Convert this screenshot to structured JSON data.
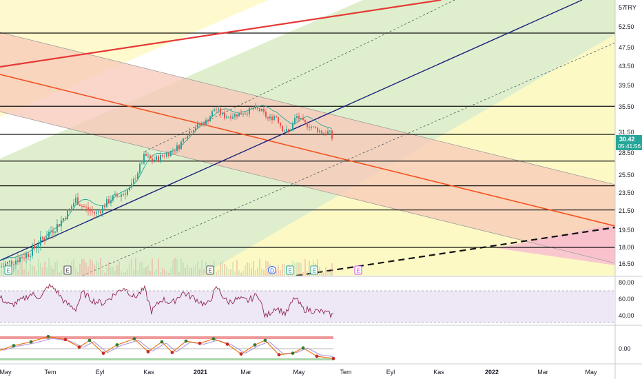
{
  "currency_label": "TRY",
  "price_tag": {
    "value": "30.42",
    "countdown": "05:41:56",
    "color": "#26a69a"
  },
  "price_axis": {
    "ticks": [
      "52.50",
      "47.50",
      "43.50",
      "39.50",
      "35.50",
      "31.50",
      "28.50",
      "25.50",
      "23.50",
      "21.50",
      "19.50",
      "18.00",
      "16.50"
    ],
    "partial_top": "57"
  },
  "rsi_axis": {
    "ticks": [
      "80.00",
      "60.00",
      "40.00"
    ]
  },
  "osc_axis": {
    "ticks": [
      "0.00"
    ]
  },
  "time_axis": {
    "labels": [
      {
        "text": "May",
        "bold": false
      },
      {
        "text": "Tem",
        "bold": false
      },
      {
        "text": "Eyl",
        "bold": false
      },
      {
        "text": "Kas",
        "bold": false
      },
      {
        "text": "2021",
        "bold": true
      },
      {
        "text": "Mar",
        "bold": false
      },
      {
        "text": "May",
        "bold": false
      },
      {
        "text": "Tem",
        "bold": false
      },
      {
        "text": "Eyl",
        "bold": false
      },
      {
        "text": "Kas",
        "bold": false
      },
      {
        "text": "2022",
        "bold": true
      },
      {
        "text": "Mar",
        "bold": false
      },
      {
        "text": "May",
        "bold": false
      }
    ]
  },
  "event_markers": [
    {
      "letter": "E",
      "color": "#26a69a"
    },
    {
      "letter": "E",
      "color": "#555555"
    },
    {
      "letter": "E",
      "color": "#555555"
    },
    {
      "letter": "D",
      "color": "#2962ff"
    },
    {
      "letter": "E",
      "color": "#26a69a"
    },
    {
      "letter": "E",
      "color": "#26a69a"
    },
    {
      "letter": "E",
      "color": "#e040fb"
    }
  ],
  "chart_data": {
    "type": "line",
    "price_range": [
      15.5,
      57
    ],
    "horizontal_levels": [
      51.0,
      35.6,
      31.2,
      27.4,
      24.3,
      21.6,
      18.0
    ],
    "close_series": [
      {
        "t": 0,
        "v": 16.2
      },
      {
        "t": 20,
        "v": 16.8
      },
      {
        "t": 40,
        "v": 17.4
      },
      {
        "t": 55,
        "v": 18.3
      },
      {
        "t": 70,
        "v": 19.2
      },
      {
        "t": 85,
        "v": 20.1
      },
      {
        "t": 100,
        "v": 21.5
      },
      {
        "t": 110,
        "v": 22.8
      },
      {
        "t": 120,
        "v": 22.0
      },
      {
        "t": 130,
        "v": 21.5
      },
      {
        "t": 140,
        "v": 21.2
      },
      {
        "t": 150,
        "v": 22.0
      },
      {
        "t": 160,
        "v": 22.8
      },
      {
        "t": 175,
        "v": 23.3
      },
      {
        "t": 190,
        "v": 24.0
      },
      {
        "t": 200,
        "v": 26.0
      },
      {
        "t": 210,
        "v": 28.2
      },
      {
        "t": 220,
        "v": 27.5
      },
      {
        "t": 230,
        "v": 27.8
      },
      {
        "t": 245,
        "v": 28.5
      },
      {
        "t": 260,
        "v": 29.5
      },
      {
        "t": 270,
        "v": 31.2
      },
      {
        "t": 285,
        "v": 32.5
      },
      {
        "t": 300,
        "v": 33.2
      },
      {
        "t": 312,
        "v": 35.3
      },
      {
        "t": 325,
        "v": 34.0
      },
      {
        "t": 340,
        "v": 34.2
      },
      {
        "t": 355,
        "v": 34.6
      },
      {
        "t": 370,
        "v": 35.3
      },
      {
        "t": 380,
        "v": 34.8
      },
      {
        "t": 390,
        "v": 33.5
      },
      {
        "t": 400,
        "v": 34.2
      },
      {
        "t": 410,
        "v": 32.0
      },
      {
        "t": 420,
        "v": 31.5
      },
      {
        "t": 430,
        "v": 34.1
      },
      {
        "t": 440,
        "v": 33.0
      },
      {
        "t": 455,
        "v": 32.2
      },
      {
        "t": 470,
        "v": 31.4
      },
      {
        "t": 478,
        "v": 31.6
      },
      {
        "t": 483,
        "v": 30.4
      }
    ],
    "rsi_series": [
      {
        "t": 0,
        "v": 62
      },
      {
        "t": 15,
        "v": 52
      },
      {
        "t": 30,
        "v": 58
      },
      {
        "t": 45,
        "v": 66
      },
      {
        "t": 60,
        "v": 62
      },
      {
        "t": 70,
        "v": 76
      },
      {
        "t": 80,
        "v": 72
      },
      {
        "t": 95,
        "v": 55
      },
      {
        "t": 110,
        "v": 48
      },
      {
        "t": 120,
        "v": 68
      },
      {
        "t": 135,
        "v": 58
      },
      {
        "t": 150,
        "v": 55
      },
      {
        "t": 165,
        "v": 65
      },
      {
        "t": 180,
        "v": 74
      },
      {
        "t": 195,
        "v": 62
      },
      {
        "t": 210,
        "v": 72
      },
      {
        "t": 220,
        "v": 45
      },
      {
        "t": 235,
        "v": 60
      },
      {
        "t": 250,
        "v": 55
      },
      {
        "t": 265,
        "v": 68
      },
      {
        "t": 280,
        "v": 62
      },
      {
        "t": 300,
        "v": 52
      },
      {
        "t": 315,
        "v": 74
      },
      {
        "t": 330,
        "v": 56
      },
      {
        "t": 345,
        "v": 60
      },
      {
        "t": 360,
        "v": 58
      },
      {
        "t": 375,
        "v": 66
      },
      {
        "t": 385,
        "v": 38
      },
      {
        "t": 400,
        "v": 50
      },
      {
        "t": 415,
        "v": 42
      },
      {
        "t": 428,
        "v": 62
      },
      {
        "t": 440,
        "v": 48
      },
      {
        "t": 455,
        "v": 46
      },
      {
        "t": 470,
        "v": 44
      },
      {
        "t": 484,
        "v": 40
      }
    ],
    "osc_series": [
      {
        "t": 0,
        "v": -0.2
      },
      {
        "t": 20,
        "v": 0.4
      },
      {
        "t": 45,
        "v": 0.9
      },
      {
        "t": 70,
        "v": 1.6
      },
      {
        "t": 95,
        "v": 1.2
      },
      {
        "t": 115,
        "v": 0.2
      },
      {
        "t": 130,
        "v": 1.1
      },
      {
        "t": 150,
        "v": -0.6
      },
      {
        "t": 170,
        "v": 0.5
      },
      {
        "t": 195,
        "v": 1.3
      },
      {
        "t": 215,
        "v": -0.4
      },
      {
        "t": 235,
        "v": 0.9
      },
      {
        "t": 250,
        "v": -0.5
      },
      {
        "t": 270,
        "v": 1.0
      },
      {
        "t": 290,
        "v": 0.7
      },
      {
        "t": 310,
        "v": 1.3
      },
      {
        "t": 330,
        "v": 0.6
      },
      {
        "t": 350,
        "v": -0.7
      },
      {
        "t": 370,
        "v": 0.5
      },
      {
        "t": 385,
        "v": 1.1
      },
      {
        "t": 405,
        "v": -0.8
      },
      {
        "t": 425,
        "v": -0.6
      },
      {
        "t": 440,
        "v": 0.1
      },
      {
        "t": 460,
        "v": -1.0
      },
      {
        "t": 484,
        "v": -1.3
      }
    ]
  }
}
